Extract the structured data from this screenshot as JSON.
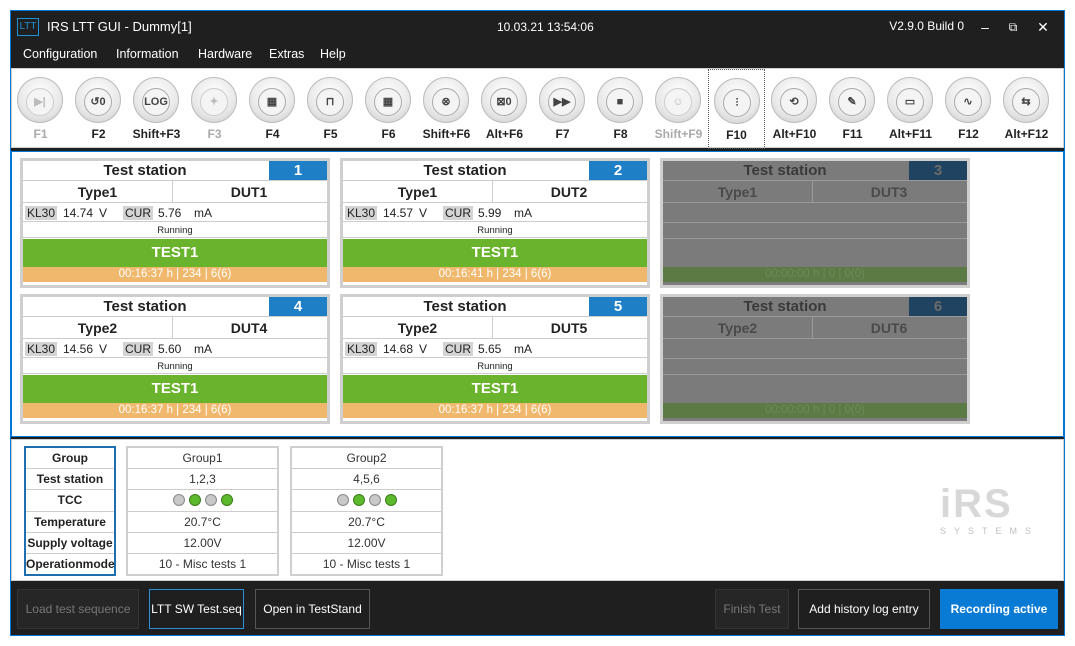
{
  "window": {
    "logo": "LTT",
    "title": "IRS LTT GUI - Dummy[1]",
    "datetime": "10.03.21 13:54:06",
    "version": "V2.9.0 Build 0",
    "minimize": "–",
    "maximize": "⧉",
    "close": "✕"
  },
  "menu": [
    "Configuration",
    "Information",
    "Hardware",
    "Extras",
    "Help"
  ],
  "toolbar": [
    {
      "label": "F1",
      "icon": "skip-icon",
      "glyph": "▶|",
      "enabled": false
    },
    {
      "label": "F2",
      "icon": "reset-counter-icon",
      "glyph": "↺0",
      "enabled": true
    },
    {
      "label": "Shift+F3",
      "icon": "log-icon",
      "glyph": "LOG",
      "enabled": true
    },
    {
      "label": "F3",
      "icon": "wand-icon",
      "glyph": "✦",
      "enabled": false
    },
    {
      "label": "F4",
      "icon": "calculator-icon",
      "glyph": "▦",
      "enabled": true
    },
    {
      "label": "F5",
      "icon": "barrier-icon",
      "glyph": "⊓",
      "enabled": true
    },
    {
      "label": "F6",
      "icon": "calendar-delete-icon",
      "glyph": "▦",
      "enabled": true
    },
    {
      "label": "Shift+F6",
      "icon": "reset-all-icon",
      "glyph": "⊗",
      "enabled": true
    },
    {
      "label": "Alt+F6",
      "icon": "reset-zero-icon",
      "glyph": "⊠0",
      "enabled": true
    },
    {
      "label": "F7",
      "icon": "fast-forward-icon",
      "glyph": "▶▶",
      "enabled": true
    },
    {
      "label": "F8",
      "icon": "stop-icon",
      "glyph": "■",
      "enabled": true
    },
    {
      "label": "Shift+F9",
      "icon": "user-icon",
      "glyph": "☺",
      "enabled": false
    },
    {
      "label": "F10",
      "icon": "sliders-icon",
      "glyph": "⫶",
      "enabled": true
    },
    {
      "label": "Alt+F10",
      "icon": "history-icon",
      "glyph": "⟲",
      "enabled": true
    },
    {
      "label": "F11",
      "icon": "wrench-icon",
      "glyph": "✎",
      "enabled": true
    },
    {
      "label": "Alt+F11",
      "icon": "monitor-icon",
      "glyph": "▭",
      "enabled": true
    },
    {
      "label": "F12",
      "icon": "pulse-icon",
      "glyph": "∿",
      "enabled": true
    },
    {
      "label": "Alt+F12",
      "icon": "transfer-icon",
      "glyph": "⇆",
      "enabled": true
    }
  ],
  "stations": [
    {
      "title": "Test station",
      "number": "1",
      "type": "Type1",
      "dut": "DUT1",
      "kl30_label": "KL30",
      "kl30": "14.74",
      "kl30_unit": "V",
      "cur_label": "CUR",
      "cur": "5.76",
      "cur_unit": "mA",
      "state": "Running",
      "test": "TEST1",
      "time": "00:16:37 h | 234 | 6(6)",
      "active": true
    },
    {
      "title": "Test station",
      "number": "2",
      "type": "Type1",
      "dut": "DUT2",
      "kl30_label": "KL30",
      "kl30": "14.57",
      "kl30_unit": "V",
      "cur_label": "CUR",
      "cur": "5.99",
      "cur_unit": "mA",
      "state": "Running",
      "test": "TEST1",
      "time": "00:16:41 h | 234 | 6(6)",
      "active": true
    },
    {
      "title": "Test station",
      "number": "3",
      "type": "Type1",
      "dut": "DUT3",
      "time": "00:00:00 h | 0 | 0(0)",
      "active": false
    },
    {
      "title": "Test station",
      "number": "4",
      "type": "Type2",
      "dut": "DUT4",
      "kl30_label": "KL30",
      "kl30": "14.56",
      "kl30_unit": "V",
      "cur_label": "CUR",
      "cur": "5.60",
      "cur_unit": "mA",
      "state": "Running",
      "test": "TEST1",
      "time": "00:16:37 h | 234 | 6(6)",
      "active": true
    },
    {
      "title": "Test station",
      "number": "5",
      "type": "Type2",
      "dut": "DUT5",
      "kl30_label": "KL30",
      "kl30": "14.68",
      "kl30_unit": "V",
      "cur_label": "CUR",
      "cur": "5.65",
      "cur_unit": "mA",
      "state": "Running",
      "test": "TEST1",
      "time": "00:16:37 h | 234 | 6(6)",
      "active": true
    },
    {
      "title": "Test station",
      "number": "6",
      "type": "Type2",
      "dut": "DUT6",
      "time": "00:00:00 h | 0 | 0(0)",
      "active": false
    }
  ],
  "groups": {
    "labels": [
      "Group",
      "Test station",
      "TCC",
      "Temperature",
      "Supply voltage",
      "Operationmode"
    ],
    "columns": [
      {
        "group": "Group1",
        "stations": "1,2,3",
        "tcc": [
          "off",
          "on",
          "off",
          "on"
        ],
        "temperature": "20.7°C",
        "voltage": "12.00V",
        "mode": "10 - Misc tests 1"
      },
      {
        "group": "Group2",
        "stations": "4,5,6",
        "tcc": [
          "off",
          "on",
          "off",
          "on"
        ],
        "temperature": "20.7°C",
        "voltage": "12.00V",
        "mode": "10 - Misc tests 1"
      }
    ]
  },
  "logo": {
    "big": "iRS",
    "small": "SYSTEMS"
  },
  "bottom": {
    "load": "Load test sequence",
    "file": "LTT SW Test.seq",
    "open": "Open in TestStand",
    "finish": "Finish Test",
    "history": "Add history log entry",
    "recording": "Recording active"
  }
}
